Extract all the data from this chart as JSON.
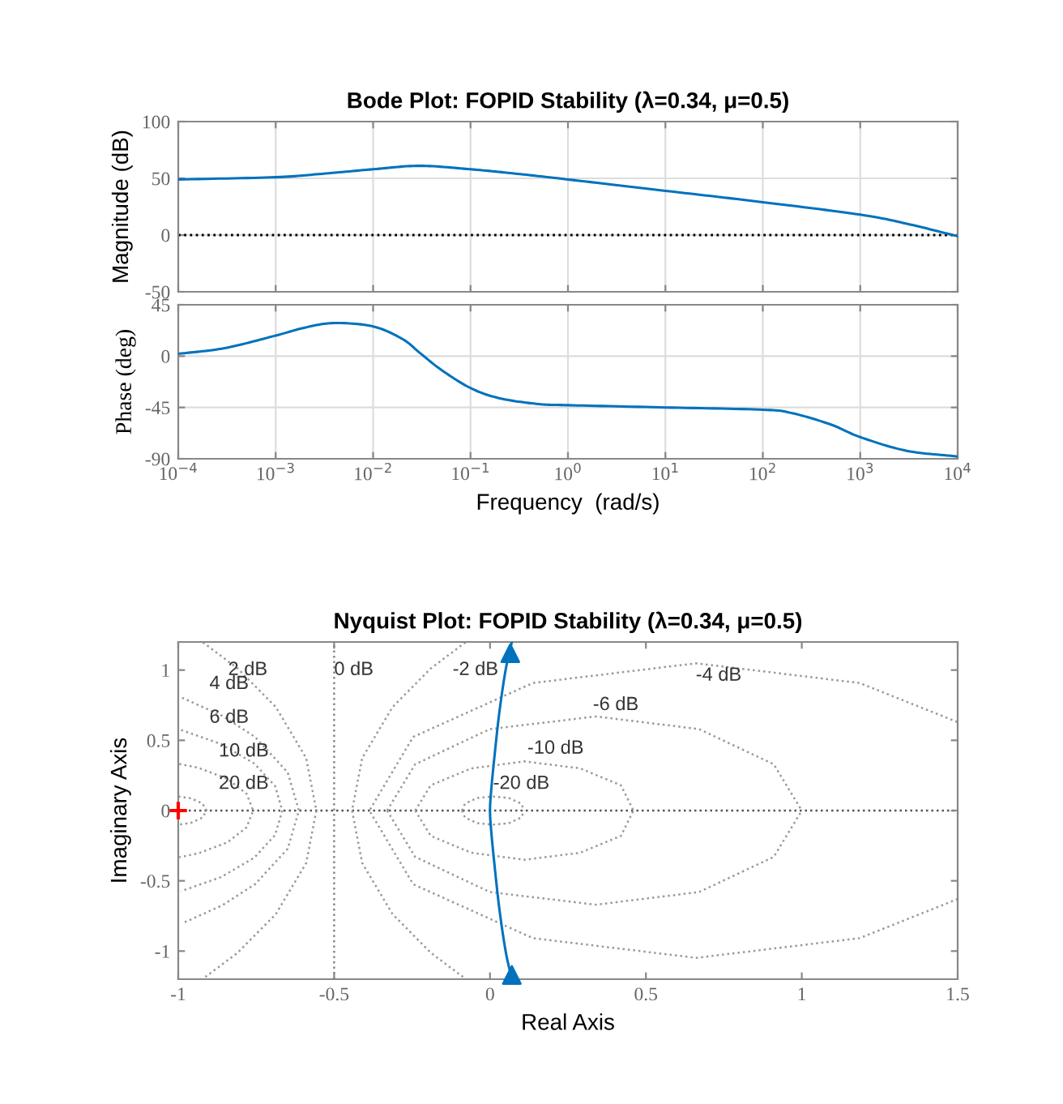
{
  "chart_data": [
    {
      "type": "line",
      "title": "Bode Plot: FOPID Stability (λ=0.34, μ=0.5)",
      "ylabel": "Magnitude (dB)",
      "x": [
        0.0001,
        0.001,
        0.003,
        0.01,
        0.03,
        0.1,
        0.3,
        1,
        10,
        100,
        1000,
        3000,
        10000
      ],
      "series": [
        {
          "color": "#0072bd",
          "values": [
            49,
            51,
            54,
            58,
            61,
            58,
            54,
            49,
            39,
            29,
            18,
            10,
            -1
          ]
        }
      ],
      "xlim": [
        0.0001,
        10000
      ],
      "ylim": [
        -50,
        100
      ],
      "yticks": [
        -50,
        0,
        50,
        100
      ],
      "xticks": [
        0.0001,
        0.001,
        0.01,
        0.1,
        1,
        10,
        100,
        1000,
        10000
      ],
      "tick_labels": "y",
      "log": "x",
      "grid": true,
      "ref_lines": [
        {
          "axis": "y",
          "value": 0,
          "color": "#000000",
          "line_style": "dotted"
        }
      ]
    },
    {
      "type": "line",
      "ylabel": "Phase (deg)",
      "xlabel": "Frequency  (rad/s)",
      "x": [
        0.0001,
        0.0003,
        0.001,
        0.002,
        0.004,
        0.01,
        0.02,
        0.03,
        0.05,
        0.1,
        0.2,
        0.5,
        1,
        10,
        100,
        200,
        500,
        1000,
        3000,
        10000
      ],
      "series": [
        {
          "color": "#0072bd",
          "values": [
            2,
            7,
            18,
            25,
            29,
            26,
            15,
            3,
            -12,
            -28,
            -37,
            -42,
            -43,
            -45,
            -47,
            -50,
            -60,
            -71,
            -83,
            -88
          ]
        }
      ],
      "xlim": [
        0.0001,
        10000
      ],
      "ylim": [
        -90,
        45
      ],
      "yticks": [
        -90,
        -45,
        0,
        45
      ],
      "xticks": [
        {
          "value": 0.0001,
          "label": "10$^{−4}$"
        },
        {
          "value": 0.001,
          "label": "10$^{−3}$"
        },
        {
          "value": 0.01,
          "label": "10$^{−2}$"
        },
        {
          "value": 0.1,
          "label": "10$^{−1}$"
        },
        {
          "value": 1,
          "label": "10$^{0}$"
        },
        {
          "value": 10,
          "label": "10$^{1}$"
        },
        {
          "value": 100,
          "label": "10$^{2}$"
        },
        {
          "value": 1000,
          "label": "10$^{3}$"
        },
        {
          "value": 10000,
          "label": "10$^{4}$"
        }
      ],
      "log": "x",
      "grid": true
    },
    {
      "type": "line",
      "title": "Nyquist Plot: FOPID Stability (λ=0.34, μ=0.5)",
      "xlabel": "Real Axis",
      "ylabel": "Imaginary Axis",
      "series": [
        {
          "color": "#0072bd",
          "x": [
            0.07,
            0.05,
            0.03,
            0.015,
            0.004,
            0.0,
            0.004,
            0.015,
            0.03,
            0.05,
            0.07
          ],
          "values": [
            1.2,
            1.0,
            0.7,
            0.4,
            0.15,
            0.0,
            -0.15,
            -0.4,
            -0.7,
            -1.0,
            -1.2
          ]
        },
        {
          "type": "scatter",
          "marker": "triangle",
          "color": "#0072bd",
          "x": [
            0.065,
            0.07
          ],
          "values": [
            1.12,
            -1.17
          ]
        },
        {
          "type": "scatter",
          "marker": "cross",
          "color": "#ff0000",
          "x": [
            -1
          ],
          "values": [
            0
          ]
        },
        {
          "line_style": "dotted",
          "color": "#999999",
          "x": [
            -0.9995,
            -0.9596,
            -0.9226,
            -0.909,
            -0.9226,
            -0.9596,
            -0.9995
          ],
          "values": [
            0.1004,
            0.0875,
            0.0505,
            0,
            -0.0505,
            -0.0875,
            -0.1004
          ]
        },
        {
          "line_style": "dotted",
          "color": "#999999",
          "x": [
            -0.9967,
            -0.9354,
            -0.842,
            -0.781,
            -0.7597,
            -0.781,
            -0.842,
            -0.9354,
            -0.9967
          ],
          "values": [
            0.3322,
            0.3043,
            0.2259,
            0.1202,
            0,
            -0.1202,
            -0.2259,
            -0.3043,
            -0.3322
          ]
        },
        {
          "line_style": "dotted",
          "color": "#999999",
          "x": [
            -0.9907,
            -0.8622,
            -0.7559,
            -0.689,
            -0.6662,
            -0.689,
            -0.7559,
            -0.8622,
            -0.9907
          ],
          "values": [
            0.5736,
            0.4732,
            0.3346,
            0.1732,
            0,
            -0.1732,
            -0.3346,
            -0.4732,
            -0.5736
          ]
        },
        {
          "line_style": "dotted",
          "color": "#999999",
          "x": [
            -0.9876,
            -0.8584,
            -0.7536,
            -0.6488,
            -0.6131,
            -0.6488,
            -0.7536,
            -0.8584,
            -0.9876
          ],
          "values": [
            0.803,
            0.6738,
            0.5242,
            0.2713,
            0,
            -0.2713,
            -0.5242,
            -0.6738,
            -0.803
          ]
        },
        {
          "line_style": "dotted",
          "color": "#999999",
          "x": [
            -0.9208,
            -0.809,
            -0.6868,
            -0.5897,
            -0.557,
            -0.5897,
            -0.6868,
            -0.809,
            -0.9208
          ],
          "values": [
            1.1975,
            1.0105,
            0.7362,
            0.3738,
            0,
            -0.3738,
            -0.7362,
            -1.0105,
            -1.1975
          ]
        },
        {
          "line_style": "dotted",
          "color": "#999999",
          "x": [
            -0.0788,
            -0.1906,
            -0.3128,
            -0.4099,
            -0.4426,
            -0.4099,
            -0.3128,
            -0.1906,
            -0.0788
          ],
          "values": [
            1.1975,
            1.0105,
            0.7362,
            0.3738,
            0,
            -0.3738,
            -0.7362,
            -1.0105,
            -1.1975
          ]
        },
        {
          "line_style": "dotted",
          "color": "#999999",
          "x": [
            1.4986,
            1.1856,
            0.6614,
            0.1373,
            -0.2465,
            -0.3869,
            -0.2465,
            0.1373,
            0.6614,
            1.1856,
            1.4986
          ],
          "values": [
            0.6309,
            0.9079,
            1.0483,
            0.9079,
            0.5242,
            0,
            -0.5242,
            -0.9079,
            -1.0483,
            -0.9079,
            -0.6309
          ]
        },
        {
          "line_style": "dotted",
          "color": "#999999",
          "x": [
            -0.33,
            -0.24,
            0.0,
            0.34,
            0.67,
            0.91,
            1.0
          ],
          "values": [
            0,
            0.33,
            0.58,
            0.67,
            0.58,
            0.33,
            0
          ]
        },
        {
          "line_style": "dotted",
          "color": "#999999",
          "x": [
            -0.33,
            -0.24,
            0.0,
            0.34,
            0.67,
            0.91,
            1.0
          ],
          "values": [
            0,
            -0.33,
            -0.58,
            -0.67,
            -0.58,
            -0.33,
            0
          ]
        },
        {
          "line_style": "dotted",
          "color": "#999999",
          "x": [
            -0.24,
            -0.19,
            -0.06,
            0.11,
            0.29,
            0.42,
            0.46
          ],
          "values": [
            0,
            0.18,
            0.3,
            0.35,
            0.3,
            0.18,
            0
          ]
        },
        {
          "line_style": "dotted",
          "color": "#999999",
          "x": [
            -0.24,
            -0.19,
            -0.06,
            0.11,
            0.29,
            0.42,
            0.46
          ],
          "values": [
            0,
            -0.18,
            -0.3,
            -0.35,
            -0.3,
            -0.18,
            0
          ]
        },
        {
          "line_style": "dotted",
          "color": "#999999",
          "x": [
            -0.09,
            -0.08,
            -0.04,
            0.01,
            0.06,
            0.1,
            0.11
          ],
          "values": [
            0,
            0.05,
            0.09,
            0.1,
            0.09,
            0.05,
            0
          ]
        },
        {
          "line_style": "dotted",
          "color": "#999999",
          "x": [
            -0.09,
            -0.08,
            -0.04,
            0.01,
            0.06,
            0.1,
            0.11
          ],
          "values": [
            0,
            -0.05,
            -0.09,
            -0.1,
            -0.09,
            -0.05,
            0
          ]
        }
      ],
      "xlim": [
        -1,
        1.5
      ],
      "ylim": [
        -1.2,
        1.2
      ],
      "xticks": [
        -1,
        -0.5,
        0,
        0.5,
        1,
        1.5
      ],
      "yticks": [
        -1,
        -0.5,
        0,
        0.5,
        1
      ],
      "ref_lines": [
        {
          "axis": "y",
          "value": 0,
          "color": "#555555",
          "line_style": "dotted"
        },
        {
          "axis": "x",
          "value": -0.5,
          "color": "#888888",
          "line_style": "dotted"
        }
      ],
      "annotations": [
        "2 dB",
        "4 dB",
        "6 dB",
        "10 dB",
        "20 dB",
        "0 dB",
        "-2 dB",
        "-4 dB",
        "-6 dB",
        "-10 dB",
        "-20 dB"
      ]
    }
  ]
}
